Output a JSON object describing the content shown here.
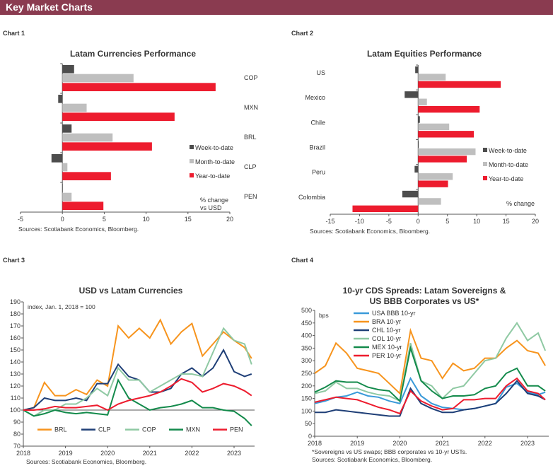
{
  "header": {
    "title": "Key Market Charts"
  },
  "colors": {
    "banner": "#8a3b50",
    "week": "#4d4d4d",
    "month": "#bfbfbf",
    "year": "#ed1c2e"
  },
  "chart_data": [
    {
      "label": "Chart 1",
      "type": "bar",
      "orientation": "horizontal",
      "title": "Latam Currencies Performance",
      "categories": [
        "COP",
        "MXN",
        "BRL",
        "CLP",
        "PEN"
      ],
      "series": [
        {
          "name": "Week-to-date",
          "color": "#4d4d4d",
          "values": [
            1.4,
            -0.5,
            1.1,
            -1.3,
            0
          ]
        },
        {
          "name": "Month-to-date",
          "color": "#bfbfbf",
          "values": [
            8.5,
            2.9,
            6.0,
            0.6,
            1.1
          ]
        },
        {
          "name": "Year-to-date",
          "color": "#ed1c2e",
          "values": [
            18.3,
            13.4,
            10.7,
            5.8,
            4.9
          ]
        }
      ],
      "xlim": [
        -5,
        20
      ],
      "ticks": [
        -5,
        0,
        5,
        10,
        15,
        20
      ],
      "annotation": [
        "% change",
        "vs USD"
      ],
      "legend": "right",
      "source": "Sources: Scotiabank Economics, Bloomberg."
    },
    {
      "label": "Chart 2",
      "type": "bar",
      "orientation": "horizontal",
      "title": "Latam Equities Performance",
      "categories": [
        "US",
        "Mexico",
        "Chile",
        "Brazil",
        "Peru",
        "Colombia"
      ],
      "series": [
        {
          "name": "Week-to-date",
          "color": "#4d4d4d",
          "values": [
            -0.5,
            -2.3,
            0.3,
            0.1,
            -0.6,
            -2.7
          ]
        },
        {
          "name": "Month-to-date",
          "color": "#bfbfbf",
          "values": [
            4.7,
            1.5,
            5.3,
            9.8,
            5.9,
            3.9
          ]
        },
        {
          "name": "Year-to-date",
          "color": "#ed1c2e",
          "values": [
            14.1,
            10.5,
            9.5,
            8.3,
            5.1,
            -11.2
          ]
        }
      ],
      "xlim": [
        -15,
        20
      ],
      "ticks": [
        -15,
        -10,
        -5,
        0,
        5,
        10,
        15,
        20
      ],
      "annotation": [
        "% change"
      ],
      "legend": "right",
      "source": "Sources: Scotiabank Economics, Bloomberg."
    },
    {
      "label": "Chart 3",
      "type": "line",
      "title": "USD vs Latam Currencies",
      "ylabel": "index, Jan. 1, 2018 = 100",
      "ylim": [
        70,
        190
      ],
      "yticks": [
        70,
        80,
        90,
        100,
        110,
        120,
        130,
        140,
        150,
        160,
        170,
        180,
        190
      ],
      "xticks": [
        "2018",
        "2019",
        "2020",
        "2021",
        "2022",
        "2023"
      ],
      "reference_line": 100,
      "legend": "bottom",
      "x": [
        "2018-01",
        "2018-04",
        "2018-07",
        "2018-10",
        "2019-01",
        "2019-04",
        "2019-07",
        "2019-10",
        "2020-01",
        "2020-04",
        "2020-07",
        "2020-10",
        "2021-01",
        "2021-04",
        "2021-07",
        "2021-10",
        "2022-01",
        "2022-04",
        "2022-07",
        "2022-10",
        "2023-01",
        "2023-04",
        "2023-06"
      ],
      "series": [
        {
          "name": "BRL",
          "color": "#f7941d",
          "values": [
            100,
            102,
            123,
            112,
            112,
            117,
            113,
            125,
            120,
            170,
            160,
            168,
            160,
            175,
            155,
            165,
            172,
            145,
            155,
            165,
            158,
            152,
            143
          ]
        },
        {
          "name": "CLP",
          "color": "#1f3f77",
          "values": [
            100,
            102,
            110,
            108,
            108,
            110,
            108,
            122,
            122,
            138,
            128,
            125,
            115,
            115,
            118,
            130,
            135,
            128,
            135,
            150,
            132,
            128,
            130
          ]
        },
        {
          "name": "COP",
          "color": "#8fc9a3",
          "values": [
            100,
            95,
            100,
            100,
            105,
            105,
            110,
            118,
            112,
            135,
            125,
            125,
            115,
            120,
            125,
            130,
            130,
            128,
            148,
            168,
            158,
            155,
            138
          ]
        },
        {
          "name": "MXN",
          "color": "#138a4b",
          "values": [
            100,
            95,
            97,
            100,
            98,
            97,
            98,
            97,
            96,
            125,
            110,
            105,
            100,
            102,
            103,
            105,
            108,
            102,
            102,
            100,
            99,
            93,
            87
          ]
        },
        {
          "name": "PEN",
          "color": "#ed1c2e",
          "values": [
            100,
            100,
            101,
            103,
            102,
            102,
            103,
            104,
            100,
            105,
            108,
            110,
            112,
            115,
            120,
            126,
            123,
            115,
            118,
            122,
            120,
            116,
            112
          ]
        }
      ],
      "source": "Sources: Scotiabank Economics, Bloomberg."
    },
    {
      "label": "Chart 4",
      "type": "line",
      "title": "10-yr CDS Spreads: Latam Sovereigns &",
      "title2": "US BBB Corporates vs US*",
      "ylabel": "bps",
      "ylim": [
        0,
        500
      ],
      "yticks": [
        0,
        50,
        100,
        150,
        200,
        250,
        300,
        350,
        400,
        450,
        500
      ],
      "xticks": [
        "2018",
        "2019",
        "2020",
        "2021",
        "2022",
        "2023"
      ],
      "legend": "top-left",
      "x": [
        "2018-01",
        "2018-04",
        "2018-07",
        "2018-10",
        "2019-01",
        "2019-04",
        "2019-07",
        "2019-10",
        "2020-01",
        "2020-04",
        "2020-07",
        "2020-10",
        "2021-01",
        "2021-04",
        "2021-07",
        "2021-10",
        "2022-01",
        "2022-04",
        "2022-07",
        "2022-10",
        "2023-01",
        "2023-04",
        "2023-06"
      ],
      "series": [
        {
          "name": "USA BBB 10-yr",
          "color": "#3a9ad9",
          "values": [
            130,
            140,
            155,
            160,
            175,
            160,
            155,
            140,
            130,
            230,
            160,
            130,
            115,
            110,
            105,
            110,
            120,
            130,
            195,
            210,
            175,
            165,
            175
          ]
        },
        {
          "name": "BRA 10-yr",
          "color": "#f7941d",
          "values": [
            250,
            280,
            370,
            330,
            270,
            260,
            250,
            210,
            170,
            420,
            310,
            300,
            230,
            290,
            260,
            270,
            310,
            310,
            350,
            380,
            340,
            330,
            280
          ]
        },
        {
          "name": "CHL 10-yr",
          "color": "#1f3f77",
          "values": [
            95,
            95,
            105,
            100,
            95,
            90,
            85,
            80,
            80,
            190,
            130,
            110,
            95,
            95,
            105,
            110,
            120,
            130,
            170,
            220,
            170,
            160,
            145
          ]
        },
        {
          "name": "COL 10-yr",
          "color": "#8fc9a3",
          "values": [
            170,
            180,
            215,
            190,
            190,
            175,
            165,
            160,
            140,
            370,
            220,
            200,
            150,
            190,
            200,
            250,
            300,
            310,
            390,
            450,
            380,
            410,
            340
          ]
        },
        {
          "name": "MEX 10-yr",
          "color": "#138a4b",
          "values": [
            175,
            195,
            220,
            215,
            215,
            195,
            185,
            180,
            140,
            350,
            220,
            180,
            150,
            160,
            160,
            165,
            190,
            200,
            250,
            270,
            200,
            200,
            180
          ]
        },
        {
          "name": "PER 10-yr",
          "color": "#ed1c2e",
          "values": [
            135,
            145,
            155,
            150,
            145,
            130,
            115,
            105,
            90,
            180,
            140,
            120,
            105,
            110,
            145,
            145,
            150,
            150,
            200,
            230,
            180,
            170,
            145
          ]
        }
      ],
      "footnote": "*Sovereigns vs US swaps; BBB corporates vs 10-yr USTs.",
      "source": "Sources: Scotiabank Economics, Bloomberg."
    }
  ]
}
